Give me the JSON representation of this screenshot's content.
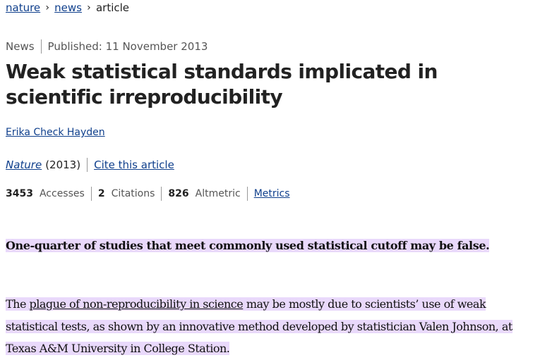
{
  "breadcrumb": {
    "items": [
      {
        "label": "nature"
      },
      {
        "label": "news"
      }
    ],
    "separator": "›",
    "current": "article"
  },
  "meta": {
    "type": "News",
    "published": "Published: 11 November 2013"
  },
  "article": {
    "title": "Weak statistical standards implicated in scientific irreproducibility",
    "author": "Erika Check Hayden",
    "journal": "Nature",
    "year": "(2013)",
    "cite_label": "Cite this article"
  },
  "metrics": {
    "accesses_count": "3453",
    "accesses_label": "Accesses",
    "citations_count": "2",
    "citations_label": "Citations",
    "altmetric_count": "826",
    "altmetric_label": "Altmetric",
    "metrics_link": "Metrics"
  },
  "content": {
    "standfirst": "One-quarter of studies that meet commonly used statistical cutoff may be false.",
    "para_prefix": "The ",
    "para_link": "plague of non-reproducibility in science",
    "para_rest": " may be mostly due to scientists’ use of weak statistical tests, as shown by an innovative method developed by statistician Valen Johnson, at Texas A&M University in College Station."
  },
  "colors": {
    "highlight": "#e9d9fb",
    "link": "#0f3f8c"
  }
}
